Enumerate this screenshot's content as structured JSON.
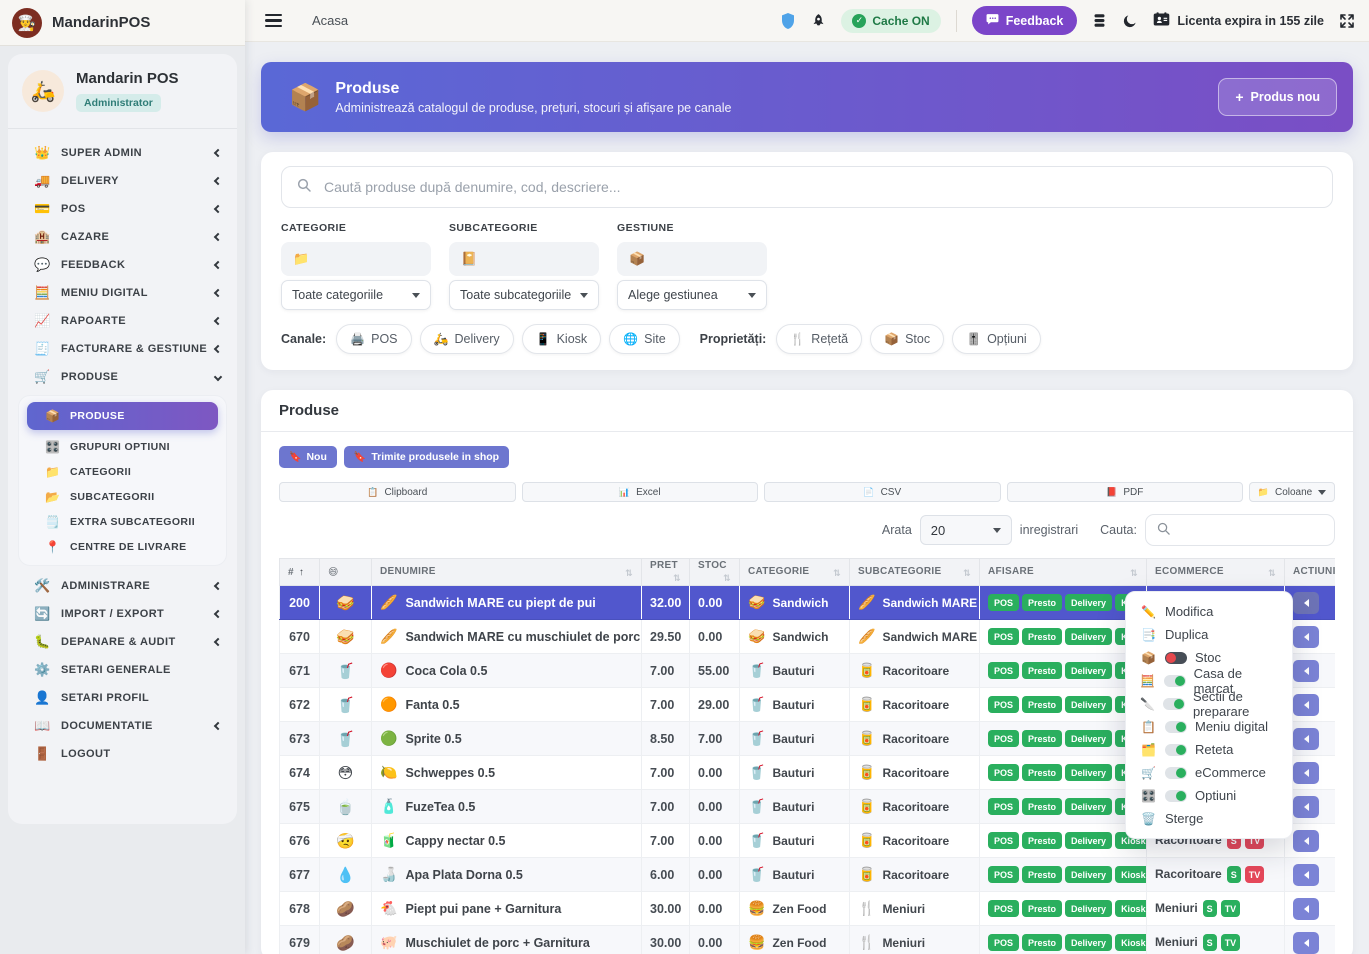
{
  "app": {
    "name": "MandarinPOS",
    "user": "Mandarin POS",
    "role": "Administrator"
  },
  "colors": {
    "accent_indigo": "#6d76cf",
    "banner_gradient_start": "#5a68d6",
    "banner_gradient_end": "#7a4ec5",
    "selected_row": "#5157cd",
    "green": "#2aaf5e",
    "red": "#e5485a",
    "feedback_purple": "#7b45c9",
    "cache_badge_bg": "#dcf2e3",
    "cache_badge_text": "#1f7a46"
  },
  "topbar": {
    "breadcrumb": "Acasa",
    "cache_badge": "Cache ON",
    "feedback_label": "Feedback",
    "license_text": "Licenta expira in 155 zile"
  },
  "sidebar": {
    "main": [
      {
        "icon": "crown",
        "glyph": "👑",
        "label": "SUPER ADMIN",
        "chevron": "left"
      },
      {
        "icon": "delivery-truck",
        "glyph": "🚚",
        "label": "DELIVERY",
        "chevron": "left"
      },
      {
        "icon": "credit-card",
        "glyph": "💳",
        "label": "POS",
        "chevron": "left"
      },
      {
        "icon": "hotel",
        "glyph": "🏨",
        "label": "CAZARE",
        "chevron": "left"
      },
      {
        "icon": "speech-bubble",
        "glyph": "💬",
        "label": "FEEDBACK",
        "chevron": "left"
      },
      {
        "icon": "calculator",
        "glyph": "🧮",
        "label": "MENIU DIGITAL",
        "chevron": "left"
      },
      {
        "icon": "chart-up",
        "glyph": "📈",
        "label": "RAPOARTE",
        "chevron": "left"
      },
      {
        "icon": "receipt",
        "glyph": "🧾",
        "label": "FACTURARE & GESTIUNE",
        "chevron": "left"
      },
      {
        "icon": "shopping-cart",
        "glyph": "🛒",
        "label": "PRODUSE",
        "chevron": "down",
        "expanded": true
      }
    ],
    "submenu": [
      {
        "icon": "package",
        "glyph": "📦",
        "label": "PRODUSE",
        "active": true
      },
      {
        "icon": "options-grid",
        "glyph": "🎛️",
        "label": "GRUPURI OPTIUNI"
      },
      {
        "icon": "folder",
        "glyph": "📁",
        "label": "CATEGORII"
      },
      {
        "icon": "open-folder",
        "glyph": "📂",
        "label": "SUBCATEGORII"
      },
      {
        "icon": "notes",
        "glyph": "🗒️",
        "label": "EXTRA SUBCATEGORII"
      },
      {
        "icon": "pushpin",
        "glyph": "📍",
        "label": "CENTRE DE LIVRARE"
      }
    ],
    "bottom": [
      {
        "icon": "tools",
        "glyph": "🛠️",
        "label": "ADMINISTRARE",
        "chevron": "left"
      },
      {
        "icon": "sync",
        "glyph": "🔄",
        "label": "IMPORT / EXPORT",
        "chevron": "left"
      },
      {
        "icon": "bug",
        "glyph": "🐛",
        "label": "DEPANARE & AUDIT",
        "chevron": "left"
      },
      {
        "icon": "gear",
        "glyph": "⚙️",
        "label": "SETARI GENERALE"
      },
      {
        "icon": "user",
        "glyph": "👤",
        "label": "SETARI PROFIL"
      },
      {
        "icon": "book",
        "glyph": "📖",
        "label": "DOCUMENTATIE",
        "chevron": "left"
      },
      {
        "icon": "door",
        "glyph": "🚪",
        "label": "LOGOUT"
      }
    ]
  },
  "banner": {
    "icon": "package",
    "glyph": "📦",
    "title": "Produse",
    "subtitle": "Administrează catalogul de produse, prețuri, stocuri și afișare pe canale",
    "new_button": "Produs nou"
  },
  "filters": {
    "search_placeholder": "Caută produse după denumire, cod, descriere...",
    "selects": [
      {
        "label": "CATEGORIE",
        "icon": "folder",
        "glyph": "📁",
        "value": "Toate categoriile"
      },
      {
        "label": "SUBCATEGORIE",
        "icon": "notebook",
        "glyph": "📔",
        "value": "Toate subcategoriile"
      },
      {
        "label": "GESTIUNE",
        "icon": "package",
        "glyph": "📦",
        "value": "Alege gestiunea"
      }
    ],
    "channels_label": "Canale:",
    "channels": [
      {
        "icon": "printer",
        "glyph": "🖨️",
        "label": "POS"
      },
      {
        "icon": "scooter",
        "glyph": "🛵",
        "label": "Delivery"
      },
      {
        "icon": "smartphone",
        "glyph": "📱",
        "label": "Kiosk"
      },
      {
        "icon": "globe",
        "glyph": "🌐",
        "label": "Site"
      }
    ],
    "props_label": "Proprietăți:",
    "props": [
      {
        "icon": "utensils",
        "glyph": "🍴",
        "label": "Rețetă"
      },
      {
        "icon": "boxes",
        "glyph": "📦",
        "label": "Stoc"
      },
      {
        "icon": "sliders",
        "glyph": "🎚️",
        "label": "Opțiuni"
      }
    ]
  },
  "panel": {
    "title": "Produse",
    "button_glyph": "🔖",
    "new_label": "Nou",
    "send_label": "Trimite produsele in shop",
    "exports": [
      {
        "icon": "clipboard",
        "glyph": "📋",
        "label": "Clipboard"
      },
      {
        "icon": "excel",
        "glyph": "📊",
        "label": "Excel"
      },
      {
        "icon": "csv-file",
        "glyph": "📄",
        "label": "CSV"
      },
      {
        "icon": "pdf",
        "glyph": "📕",
        "label": "PDF"
      }
    ],
    "columns_button": {
      "icon": "folder",
      "glyph": "📁",
      "label": "Coloane"
    },
    "show_label": "Arata",
    "page_size": "20",
    "records_label": "inregistrari",
    "search_label": "Cauta:"
  },
  "table": {
    "headers": [
      {
        "label": "#",
        "sort": "up"
      },
      {
        "label": "😄",
        "icon": "smiley-face"
      },
      {
        "label": "DENUMIRE",
        "sort": "both"
      },
      {
        "label": "PRET",
        "sort": "both"
      },
      {
        "label": "STOC",
        "sort": "both"
      },
      {
        "label": "CATEGORIE",
        "sort": "both"
      },
      {
        "label": "SUBCATEGORIE",
        "sort": "both"
      },
      {
        "label": "AFISARE",
        "sort": "both"
      },
      {
        "label": "ECOMMERCE",
        "sort": "both"
      },
      {
        "label": "ACTIUNI",
        "sort": "both"
      }
    ],
    "channel_pills": [
      "POS",
      "Presto",
      "Delivery",
      "Kiosk"
    ],
    "rows": [
      {
        "id": "200",
        "selected": true,
        "face": [
          "sandwich",
          "🥪"
        ],
        "img": [
          "baguette",
          "🥖"
        ],
        "name": "Sandwich MARE cu piept de pui",
        "pret": "32.00",
        "stoc": "0.00",
        "cat": [
          "sandwich",
          "🥪",
          "Sandwich"
        ],
        "sub": [
          "baguette",
          "🥖",
          "Sandwich MARE"
        ],
        "ecom": null
      },
      {
        "id": "670",
        "face": [
          "sandwich",
          "🥪"
        ],
        "img": [
          "baguette",
          "🥖"
        ],
        "name": "Sandwich MARE cu muschiulet de porc",
        "pret": "29.50",
        "stoc": "0.00",
        "cat": [
          "sandwich",
          "🥪",
          "Sandwich"
        ],
        "sub": [
          "baguette",
          "🥖",
          "Sandwich MARE"
        ],
        "ecom": null
      },
      {
        "id": "671",
        "face": [
          "cup-with-straw",
          "🥤"
        ],
        "img": [
          "coca-cola-logo",
          "🔴"
        ],
        "name": "Coca Cola 0.5",
        "pret": "7.00",
        "stoc": "55.00",
        "cat": [
          "cola-bottle",
          "🥤",
          "Bauturi"
        ],
        "sub": [
          "soda-can",
          "🥫",
          "Racoritoare"
        ],
        "ecom": null
      },
      {
        "id": "672",
        "face": [
          "cup-with-straw",
          "🥤"
        ],
        "img": [
          "fanta-cap",
          "🟠"
        ],
        "name": "Fanta 0.5",
        "pret": "7.00",
        "stoc": "29.00",
        "cat": [
          "cola-bottle",
          "🥤",
          "Bauturi"
        ],
        "sub": [
          "soda-can",
          "🥫",
          "Racoritoare"
        ],
        "ecom": null
      },
      {
        "id": "673",
        "face": [
          "cup-with-straw",
          "🥤"
        ],
        "img": [
          "sprite-cap",
          "🟢"
        ],
        "name": "Sprite 0.5",
        "pret": "8.50",
        "stoc": "7.00",
        "cat": [
          "cola-bottle",
          "🥤",
          "Bauturi"
        ],
        "sub": [
          "soda-can",
          "🥫",
          "Racoritoare"
        ],
        "ecom": null
      },
      {
        "id": "674",
        "face": [
          "flushed-face",
          "😳"
        ],
        "img": [
          "schweppes-bottle",
          "🍋"
        ],
        "name": "Schweppes 0.5",
        "pret": "7.00",
        "stoc": "0.00",
        "cat": [
          "cola-bottle",
          "🥤",
          "Bauturi"
        ],
        "sub": [
          "soda-can",
          "🥫",
          "Racoritoare"
        ],
        "ecom": null
      },
      {
        "id": "675",
        "face": [
          "teacup",
          "🍵"
        ],
        "img": [
          "fuzetea-bottle",
          "🧴"
        ],
        "name": "FuzeTea 0.5",
        "pret": "7.00",
        "stoc": "0.00",
        "cat": [
          "cola-bottle",
          "🥤",
          "Bauturi"
        ],
        "sub": [
          "soda-can",
          "🥫",
          "Racoritoare"
        ],
        "ecom": null
      },
      {
        "id": "676",
        "face": [
          "head-bandage-face",
          "🤕"
        ],
        "img": [
          "cappy-bottle",
          "🧃"
        ],
        "name": "Cappy nectar 0.5",
        "pret": "7.00",
        "stoc": "0.00",
        "cat": [
          "cola-bottle",
          "🥤",
          "Bauturi"
        ],
        "sub": [
          "soda-can",
          "🥫",
          "Racoritoare"
        ],
        "ecom": {
          "label": "Racoritoare",
          "s": false,
          "tv": false
        }
      },
      {
        "id": "677",
        "face": [
          "droplet",
          "💧"
        ],
        "img": [
          "water-bottle",
          "🍶"
        ],
        "name": "Apa Plata Dorna 0.5",
        "pret": "6.00",
        "stoc": "0.00",
        "cat": [
          "cola-bottle",
          "🥤",
          "Bauturi"
        ],
        "sub": [
          "soda-can",
          "🥫",
          "Racoritoare"
        ],
        "ecom": {
          "label": "Racoritoare",
          "s": true,
          "tv": false
        }
      },
      {
        "id": "678",
        "face": [
          "potato",
          "🥔"
        ],
        "img": [
          "chicken",
          "🐔"
        ],
        "name": "Piept pui pane + Garnitura",
        "pret": "30.00",
        "stoc": "0.00",
        "cat": [
          "fast-food",
          "🍔",
          "Zen Food"
        ],
        "sub": [
          "utensils",
          "🍴",
          "Meniuri"
        ],
        "ecom": {
          "label": "Meniuri",
          "s": true,
          "tv": true
        }
      },
      {
        "id": "679",
        "face": [
          "potato",
          "🥔"
        ],
        "img": [
          "pig",
          "🐖"
        ],
        "name": "Muschiulet de porc + Garnitura",
        "pret": "30.00",
        "stoc": "0.00",
        "cat": [
          "fast-food",
          "🍔",
          "Zen Food"
        ],
        "sub": [
          "utensils",
          "🍴",
          "Meniuri"
        ],
        "ecom": {
          "label": "Meniuri",
          "s": true,
          "tv": true
        }
      }
    ]
  },
  "context_menu": {
    "items": [
      {
        "icon": "pencil",
        "glyph": "✏️",
        "label": "Modifica"
      },
      {
        "icon": "duplicate",
        "glyph": "📑",
        "label": "Duplica"
      },
      {
        "icon": "boxes",
        "glyph": "📦",
        "label": "Stoc",
        "toggle": "off"
      },
      {
        "icon": "cash-register",
        "glyph": "🧮",
        "label": "Casa de marcat",
        "toggle": "on"
      },
      {
        "icon": "knife",
        "glyph": "🔪",
        "label": "Sectii de preparare",
        "toggle": "on"
      },
      {
        "icon": "menu-list",
        "glyph": "📋",
        "label": "Meniu digital",
        "toggle": "on"
      },
      {
        "icon": "recipe-card",
        "glyph": "🗂️",
        "label": "Reteta",
        "toggle": "on"
      },
      {
        "icon": "shopping-cart",
        "glyph": "🛒",
        "label": "eCommerce",
        "toggle": "on"
      },
      {
        "icon": "options-grid",
        "glyph": "🎛️",
        "label": "Optiuni",
        "toggle": "on"
      },
      {
        "icon": "trash",
        "glyph": "🗑️",
        "label": "Sterge"
      }
    ]
  }
}
